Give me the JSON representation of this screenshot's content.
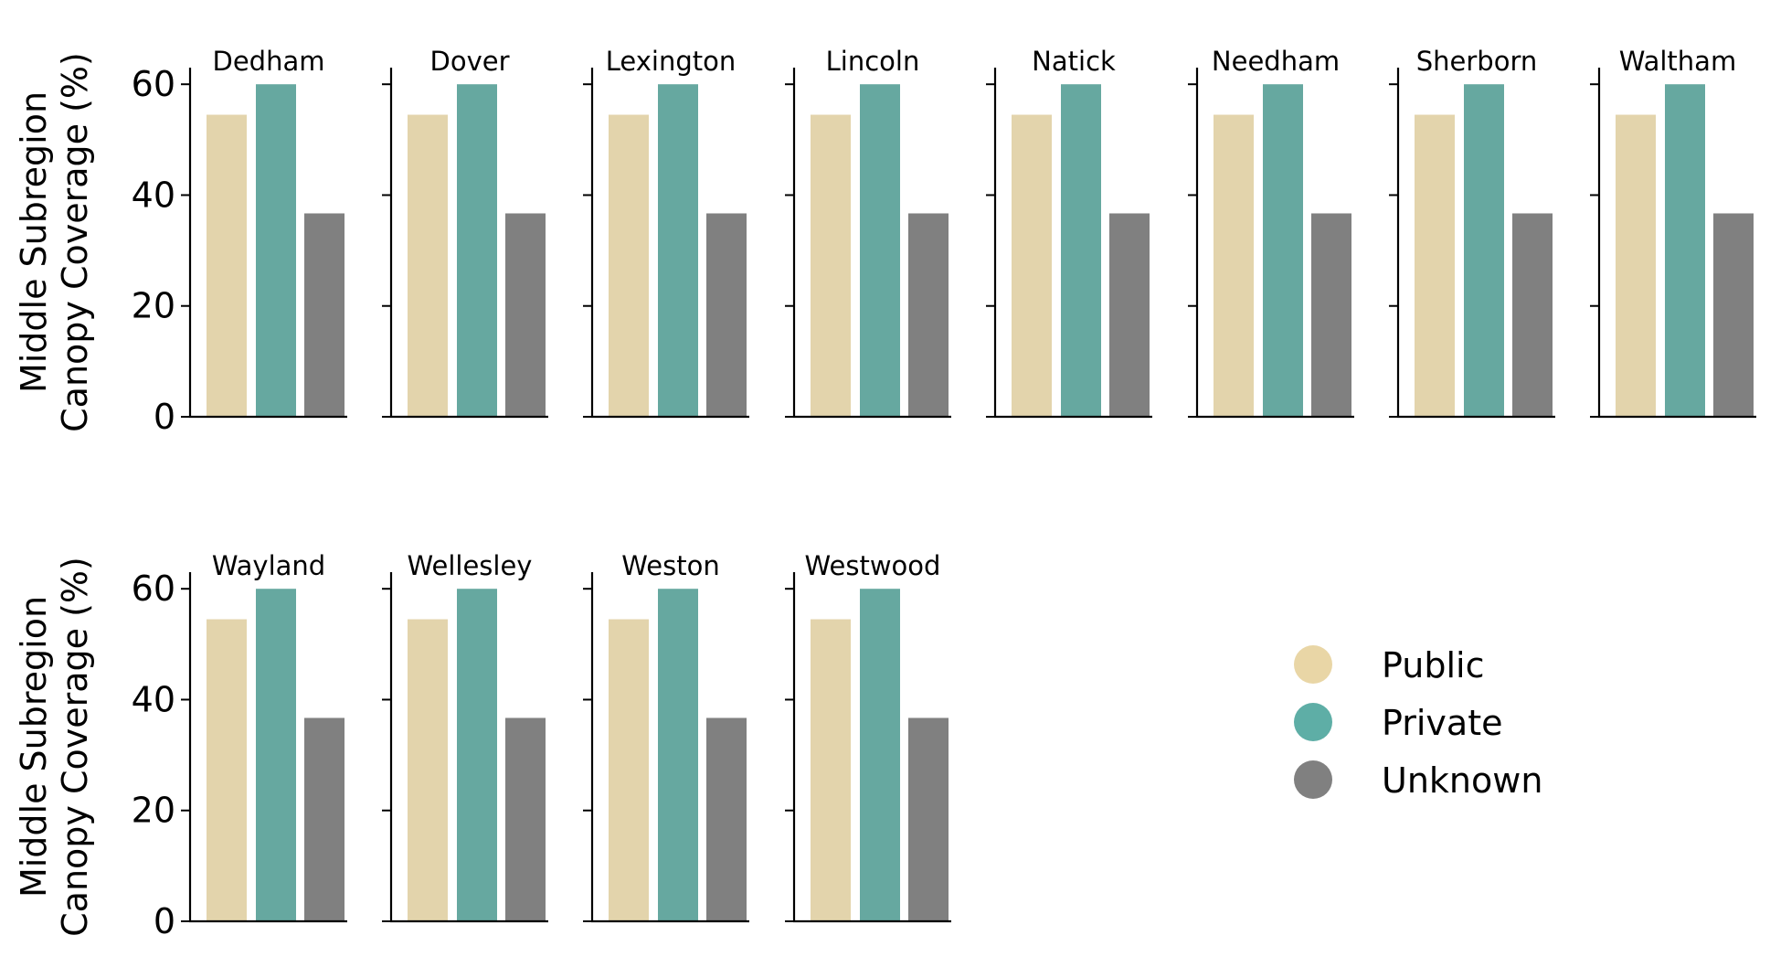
{
  "chart_data": {
    "type": "bar",
    "ylabel": [
      "Middle Subregion",
      "Canopy Coverage (%)"
    ],
    "ylim": [
      0,
      63
    ],
    "yticks": [
      0,
      20,
      40,
      60
    ],
    "grid": false,
    "legend_placement": "right",
    "categories": [
      "Public",
      "Private",
      "Unknown"
    ],
    "colors": {
      "Public": "#e3d4ac",
      "Private": "#66a8a0",
      "Unknown": "#808080"
    },
    "legend": [
      {
        "label": "Public",
        "color": "#e9d6a6"
      },
      {
        "label": "Private",
        "color": "#5eaea6"
      },
      {
        "label": "Unknown",
        "color": "#808080"
      }
    ],
    "panels": [
      {
        "title": "Dedham",
        "values": [
          54.5,
          60.0,
          36.7
        ]
      },
      {
        "title": "Dover",
        "values": [
          54.5,
          60.0,
          36.7
        ]
      },
      {
        "title": "Lexington",
        "values": [
          54.5,
          60.0,
          36.7
        ]
      },
      {
        "title": "Lincoln",
        "values": [
          54.5,
          60.0,
          36.7
        ]
      },
      {
        "title": "Natick",
        "values": [
          54.5,
          60.0,
          36.7
        ]
      },
      {
        "title": "Needham",
        "values": [
          54.5,
          60.0,
          36.7
        ]
      },
      {
        "title": "Sherborn",
        "values": [
          54.5,
          60.0,
          36.7
        ]
      },
      {
        "title": "Waltham",
        "values": [
          54.5,
          60.0,
          36.7
        ]
      },
      {
        "title": "Wayland",
        "values": [
          54.5,
          60.0,
          36.7
        ]
      },
      {
        "title": "Wellesley",
        "values": [
          54.5,
          60.0,
          36.7
        ]
      },
      {
        "title": "Weston",
        "values": [
          54.5,
          60.0,
          36.7
        ]
      },
      {
        "title": "Westwood",
        "values": [
          54.5,
          60.0,
          36.7
        ]
      }
    ]
  }
}
